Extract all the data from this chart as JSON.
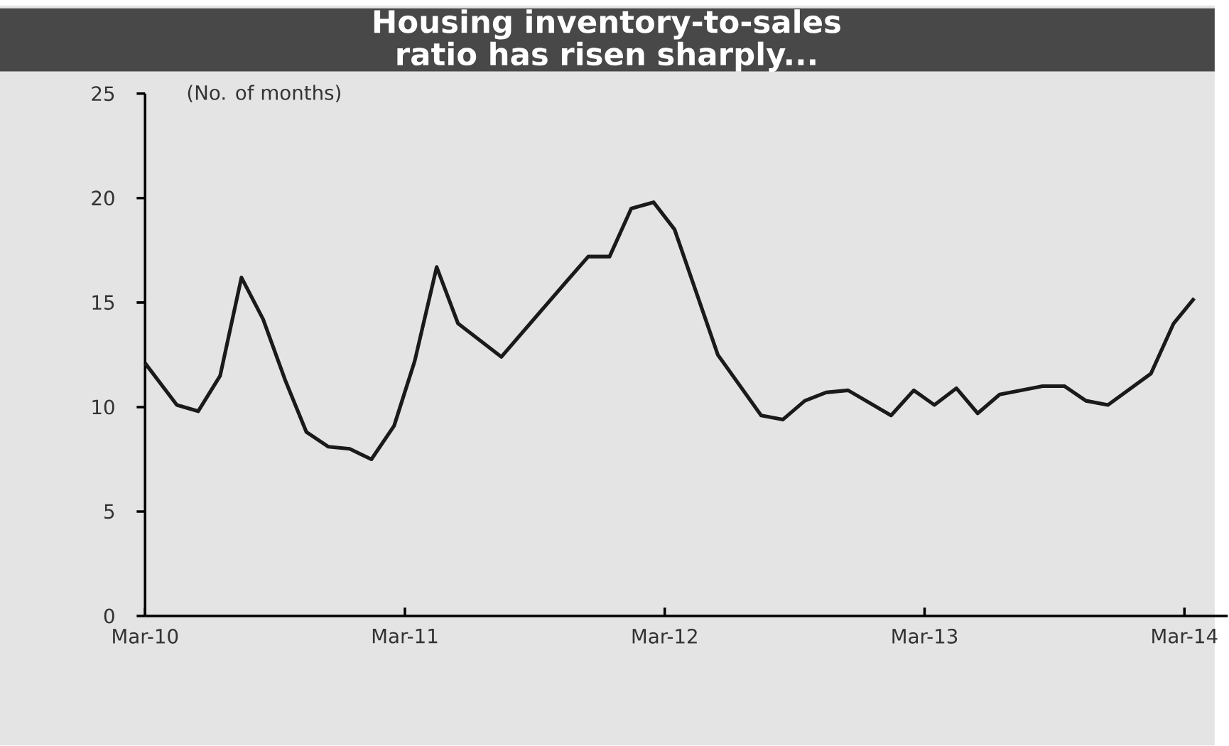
{
  "chart_data": {
    "type": "line",
    "title": "Housing inventory-to-sales ratio has risen sharply...",
    "ylabel": "(No. of months)",
    "x": [
      "2010-03-01",
      "2010-04-15",
      "2010-05-15",
      "2010-06-15",
      "2010-07-15",
      "2010-08-15",
      "2010-09-15",
      "2010-10-15",
      "2010-11-15",
      "2010-12-15",
      "2011-01-15",
      "2011-02-15",
      "2011-03-15",
      "2011-04-15",
      "2011-05-15",
      "2011-07-15",
      "2011-10-15",
      "2011-11-15",
      "2011-12-15",
      "2012-01-15",
      "2012-02-15",
      "2012-03-15",
      "2012-05-15",
      "2012-07-15",
      "2012-08-15",
      "2012-09-15",
      "2012-10-15",
      "2012-11-15",
      "2013-01-15",
      "2013-02-15",
      "2013-03-15",
      "2013-04-15",
      "2013-05-15",
      "2013-06-15",
      "2013-08-15",
      "2013-09-15",
      "2013-10-15",
      "2013-11-15",
      "2014-01-15",
      "2014-02-15",
      "2014-03-15"
    ],
    "series": [
      {
        "color": "#1a1a1a",
        "values": [
          12.1,
          10.1,
          9.8,
          11.5,
          16.2,
          14.2,
          11.3,
          8.8,
          8.1,
          8.0,
          7.5,
          9.1,
          12.2,
          16.7,
          14.0,
          12.4,
          16.0,
          17.2,
          17.2,
          19.5,
          19.8,
          18.5,
          12.5,
          9.6,
          9.4,
          10.3,
          10.7,
          10.8,
          9.6,
          10.8,
          10.1,
          10.9,
          9.7,
          10.6,
          11.0,
          11.0,
          10.3,
          10.1,
          11.6,
          14.0,
          15.2
        ]
      }
    ],
    "xlim": [
      "2010-03-01",
      "2014-05-01"
    ],
    "xticks": [
      {
        "value": "2010-03-01",
        "label": "Mar-10"
      },
      {
        "value": "2011-03-01",
        "label": "Mar-11"
      },
      {
        "value": "2012-03-01",
        "label": "Mar-12"
      },
      {
        "value": "2013-03-01",
        "label": "Mar-13"
      },
      {
        "value": "2014-03-01",
        "label": "Mar-14"
      }
    ],
    "ylim": [
      0,
      25
    ],
    "yticks": [
      0,
      5,
      10,
      15,
      20,
      25
    ],
    "marker": "none",
    "line_style": "solid"
  }
}
